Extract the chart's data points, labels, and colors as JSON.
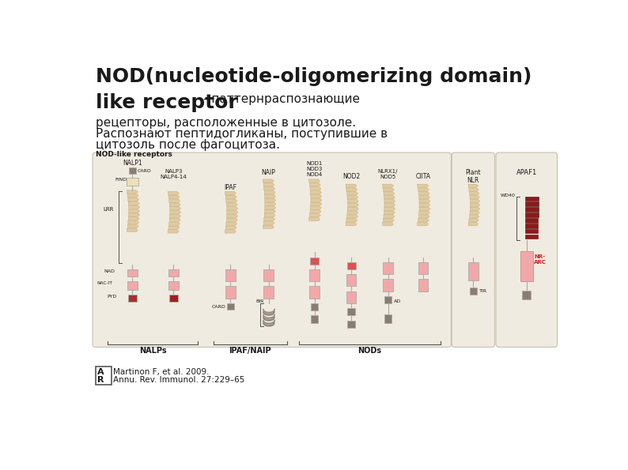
{
  "bg_color": "#ffffff",
  "title_line1": "NOD(nucleotide-oligomerizing domain)",
  "title_line2_bold": "like receptor",
  "title_line2_normal": "- паттернраспознающие",
  "title_line3": "рецепторы, расположенные в цитозоле.",
  "title_line4": "Распознают пептидогликаны, поступившие в",
  "title_line5": "цитозоль после фагоцитоза.",
  "diagram_label": "NOD-like receptors",
  "citation_line1": "Martinon F, et al. 2009.",
  "citation_line2": "Annu. Rev. Immunol. 27:229–65",
  "text_color": "#1a1a1a",
  "diagram_bg": "#f0ebe0",
  "pink_light": "#f2a8a8",
  "pink_medium": "#e07070",
  "tan_color": "#dcc8a0",
  "lrr_edge": "#c8a868",
  "dark_red": "#8b1a1a",
  "med_red": "#c05050",
  "gray_domain": "#8a7d70",
  "cream_domain": "#ede0b8",
  "stem_color": "#aaaaaa"
}
